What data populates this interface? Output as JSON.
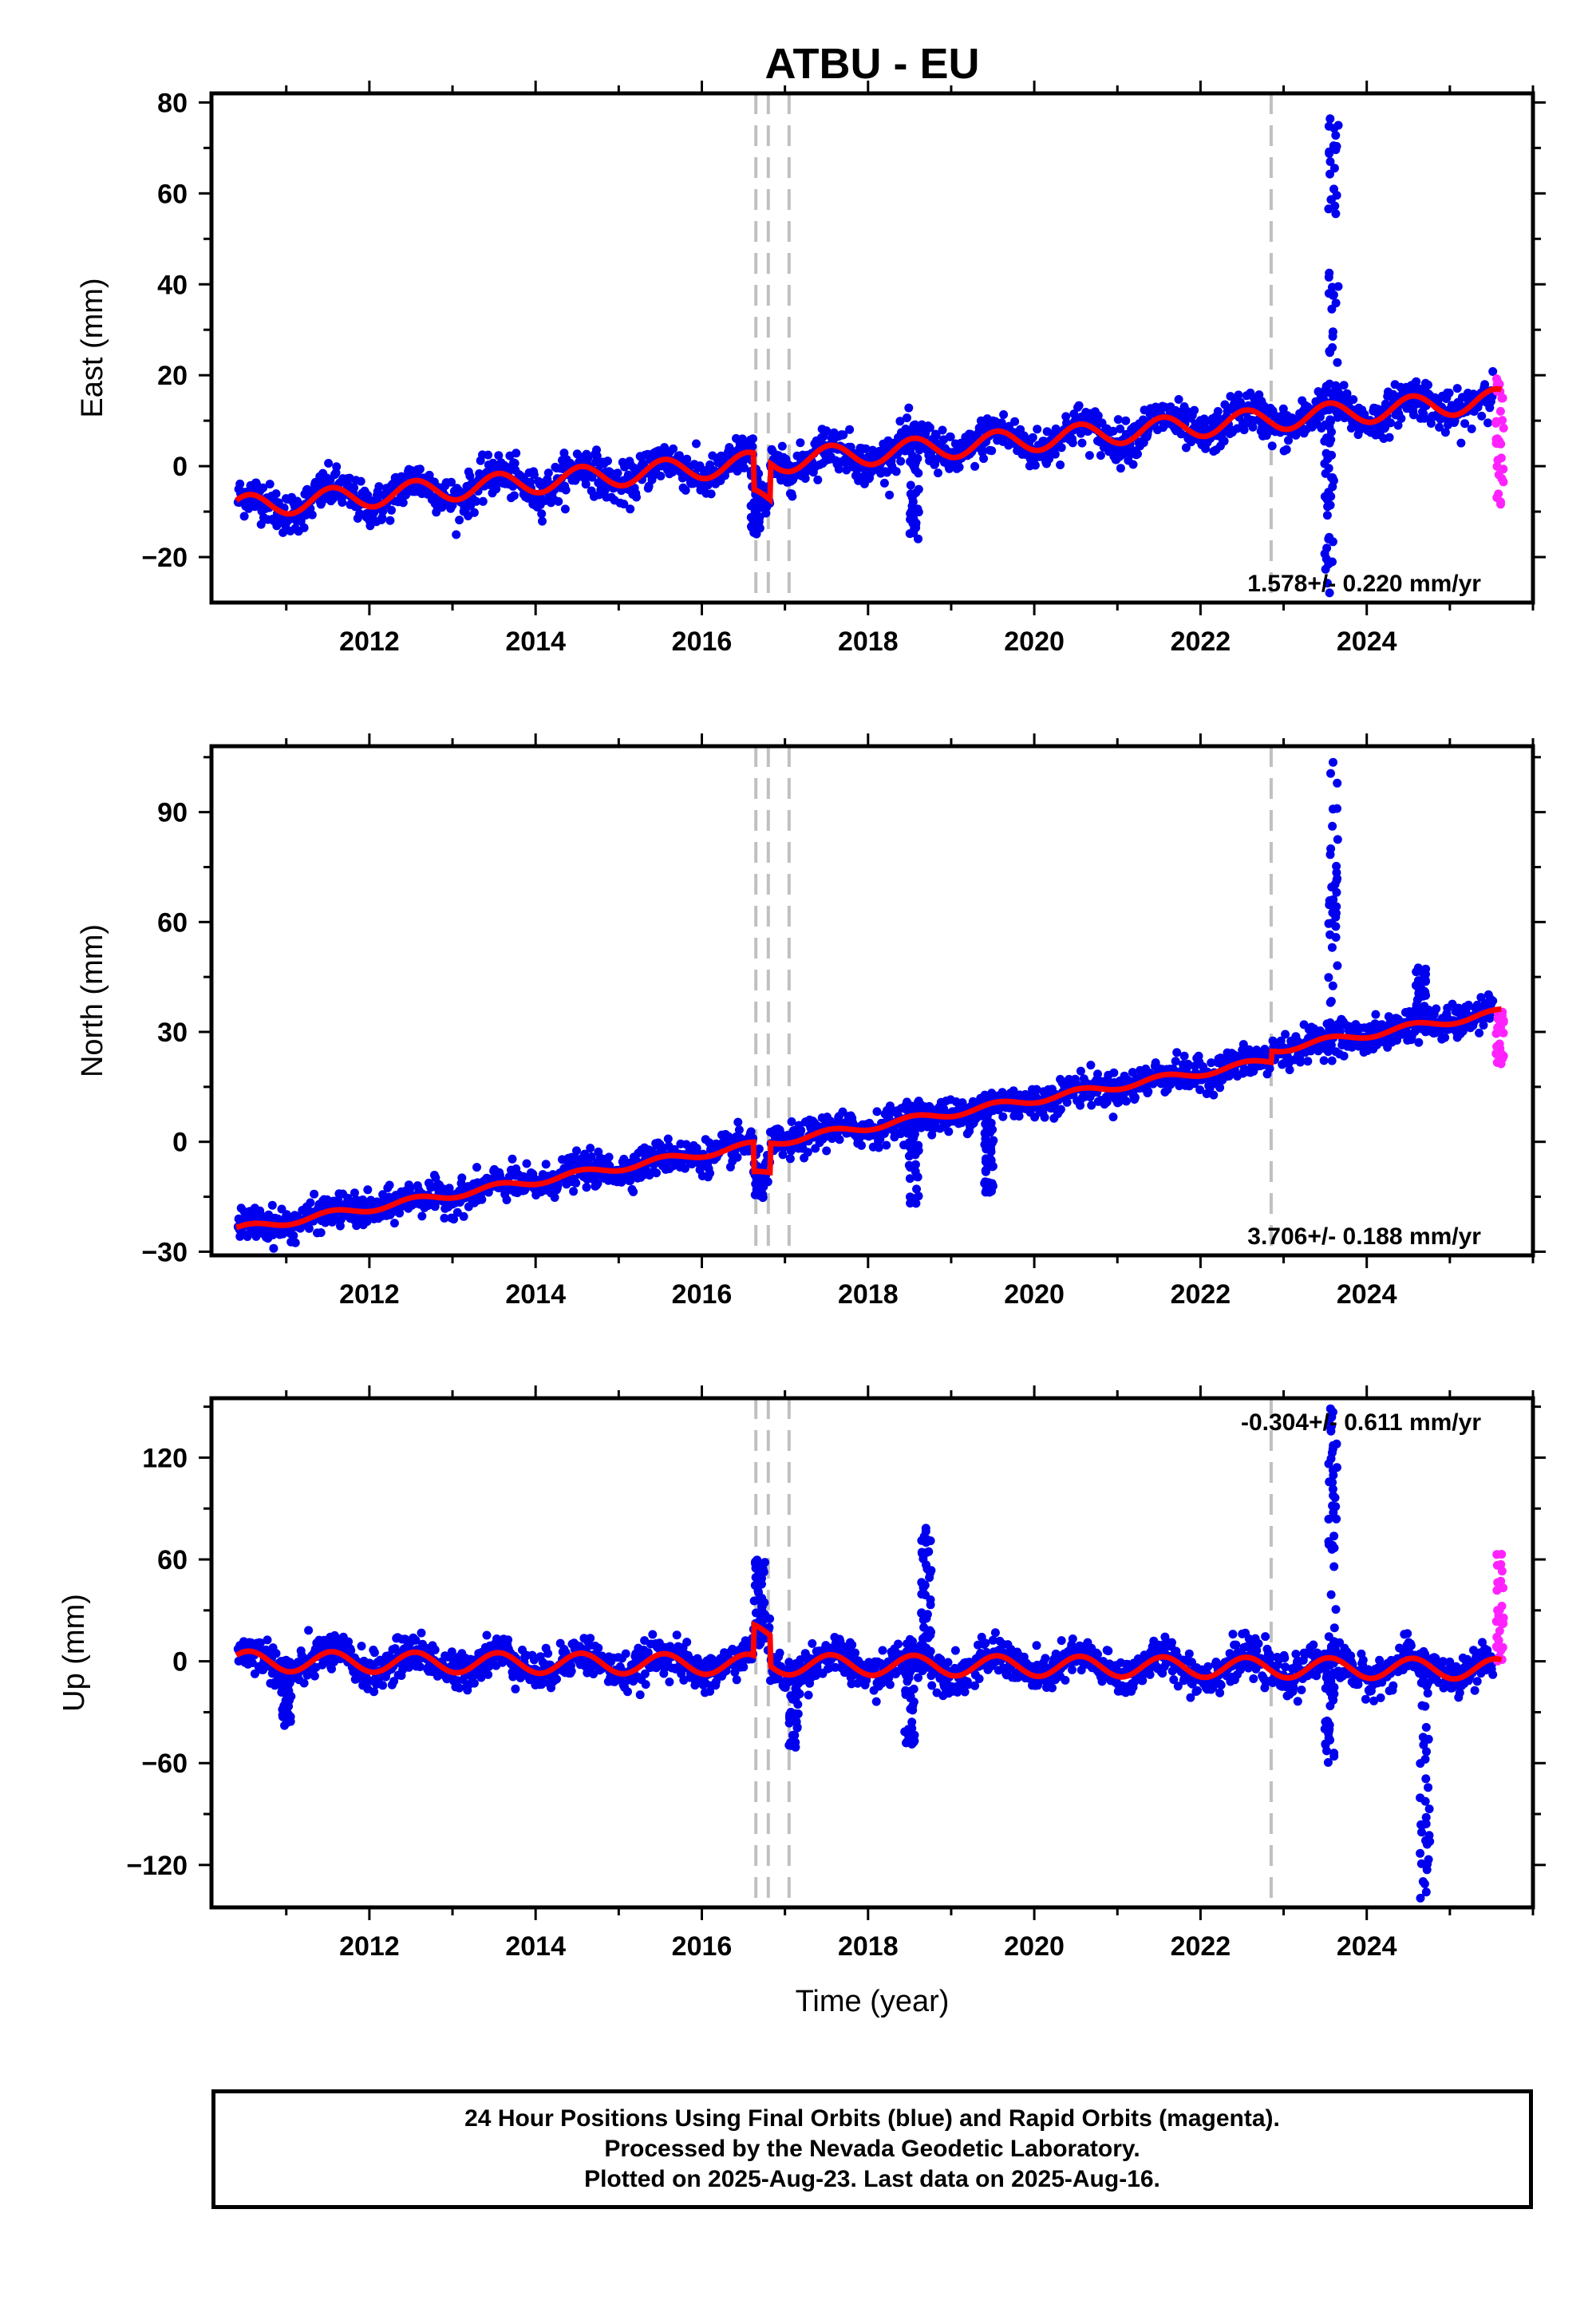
{
  "figure": {
    "title": "ATBU - EU",
    "footer": {
      "line1": "24 Hour Positions Using Final Orbits (blue) and Rapid Orbits (magenta).",
      "line2": "Processed by the Nevada Geodetic Laboratory.",
      "line3": "Plotted on 2025-Aug-23. Last data on 2025-Aug-16."
    },
    "colors": {
      "final": "#0000ee",
      "rapid": "#ff22ff",
      "model": "#ff0000",
      "steps": "#c0c0c0",
      "frame": "#000000"
    }
  },
  "chart_data": [
    {
      "type": "scatter",
      "ylabel": "East (mm)",
      "xlabel": "",
      "xlim": [
        2010.1,
        2026.0
      ],
      "ylim": [
        -30,
        82
      ],
      "xticks": [
        2012,
        2014,
        2016,
        2018,
        2020,
        2022,
        2024
      ],
      "yticks": [
        -20,
        0,
        20,
        40,
        60,
        80
      ],
      "rate_label": "1.578+/- 0.220 mm/yr",
      "rate_position": "bottom-right",
      "step_epochs": [
        2016.65,
        2016.8,
        2017.05,
        2022.85
      ],
      "trend": {
        "x0": 2010.4,
        "y0": -9,
        "rate": 1.55,
        "annual_amp": 2.5
      },
      "spikes": [
        {
          "x": 2016.65,
          "y": -15
        },
        {
          "x": 2018.55,
          "y": -16
        },
        {
          "x": 2023.6,
          "y": 78
        },
        {
          "x": 2023.55,
          "y": -28
        }
      ],
      "rapid_range": [
        -9,
        22
      ]
    },
    {
      "type": "scatter",
      "ylabel": "North (mm)",
      "xlabel": "",
      "xlim": [
        2010.1,
        2026.0
      ],
      "ylim": [
        -31,
        108
      ],
      "xticks": [
        2012,
        2014,
        2016,
        2018,
        2020,
        2022,
        2024
      ],
      "yticks": [
        -30,
        0,
        30,
        60,
        90
      ],
      "rate_label": "3.706+/- 0.188 mm/yr",
      "rate_position": "bottom-right",
      "step_epochs": [
        2016.65,
        2016.8,
        2017.05,
        2022.85
      ],
      "trend": {
        "x0": 2010.4,
        "y0": -24,
        "rate": 3.7,
        "annual_amp": 1.0
      },
      "spikes": [
        {
          "x": 2016.7,
          "y": -16
        },
        {
          "x": 2018.55,
          "y": -17
        },
        {
          "x": 2019.45,
          "y": -14
        },
        {
          "x": 2023.6,
          "y": 106
        },
        {
          "x": 2024.65,
          "y": 48
        }
      ],
      "rapid_range": [
        21,
        36
      ]
    },
    {
      "type": "scatter",
      "ylabel": "Up (mm)",
      "xlabel": "Time (year)",
      "xlim": [
        2010.1,
        2026.0
      ],
      "ylim": [
        -145,
        155
      ],
      "xticks": [
        2012,
        2014,
        2016,
        2018,
        2020,
        2022,
        2024
      ],
      "yticks": [
        -120,
        -60,
        0,
        60,
        120
      ],
      "rate_label": "-0.304+/- 0.611 mm/yr",
      "rate_position": "top-right",
      "step_epochs": [
        2016.65,
        2016.8,
        2017.05,
        2022.85
      ],
      "trend": {
        "x0": 2010.4,
        "y0": 0,
        "rate": -0.3,
        "annual_amp": 6.0
      },
      "spikes": [
        {
          "x": 2016.7,
          "y": 60
        },
        {
          "x": 2018.7,
          "y": 79
        },
        {
          "x": 2018.5,
          "y": -52
        },
        {
          "x": 2023.6,
          "y": 150
        },
        {
          "x": 2023.55,
          "y": -60
        },
        {
          "x": 2024.7,
          "y": -140
        },
        {
          "x": 2011.0,
          "y": -38
        },
        {
          "x": 2017.1,
          "y": -52
        }
      ],
      "rapid_range": [
        -5,
        64
      ]
    }
  ]
}
